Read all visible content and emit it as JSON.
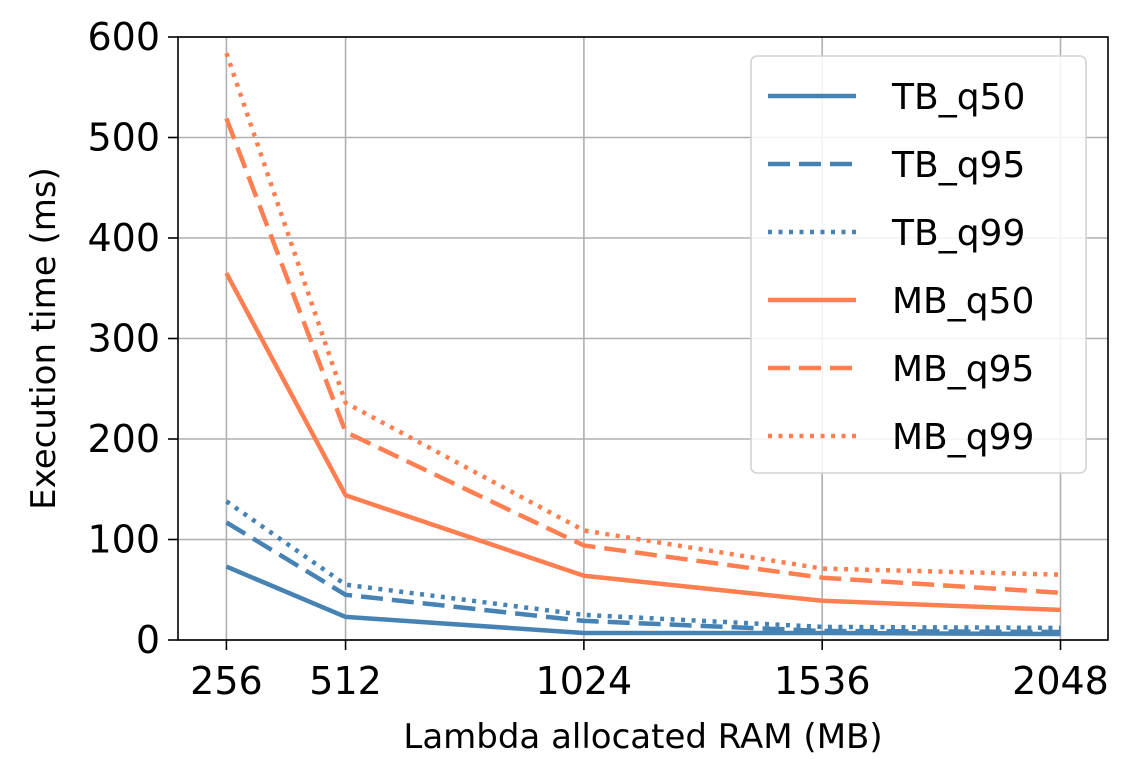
{
  "chart_data": {
    "type": "line",
    "title": "",
    "xlabel": "Lambda allocated RAM (MB)",
    "ylabel": "Execution time (ms)",
    "x": [
      256,
      512,
      1024,
      1536,
      2048
    ],
    "xticks": [
      "256",
      "512",
      "1024",
      "1536",
      "2048"
    ],
    "xlim": [
      152,
      2150
    ],
    "ylim": [
      0,
      600
    ],
    "yticks": [
      "0",
      "100",
      "200",
      "300",
      "400",
      "500",
      "600"
    ],
    "grid": true,
    "legend_position": "top-right",
    "colors": {
      "TB": "#4682b4",
      "MB": "#ff7f50"
    },
    "series": [
      {
        "name": "TB_q50",
        "group": "TB",
        "style": "solid",
        "values": [
          73,
          23,
          7,
          7,
          6
        ]
      },
      {
        "name": "TB_q95",
        "group": "TB",
        "style": "dashed",
        "values": [
          117,
          45,
          19,
          9,
          8
        ]
      },
      {
        "name": "TB_q99",
        "group": "TB",
        "style": "dotted",
        "values": [
          138,
          55,
          25,
          13,
          12
        ]
      },
      {
        "name": "MB_q50",
        "group": "MB",
        "style": "solid",
        "values": [
          365,
          144,
          64,
          39,
          30
        ]
      },
      {
        "name": "MB_q95",
        "group": "MB",
        "style": "dashed",
        "values": [
          519,
          207,
          94,
          62,
          47
        ]
      },
      {
        "name": "MB_q99",
        "group": "MB",
        "style": "dotted",
        "values": [
          584,
          236,
          109,
          71,
          65
        ]
      }
    ]
  }
}
